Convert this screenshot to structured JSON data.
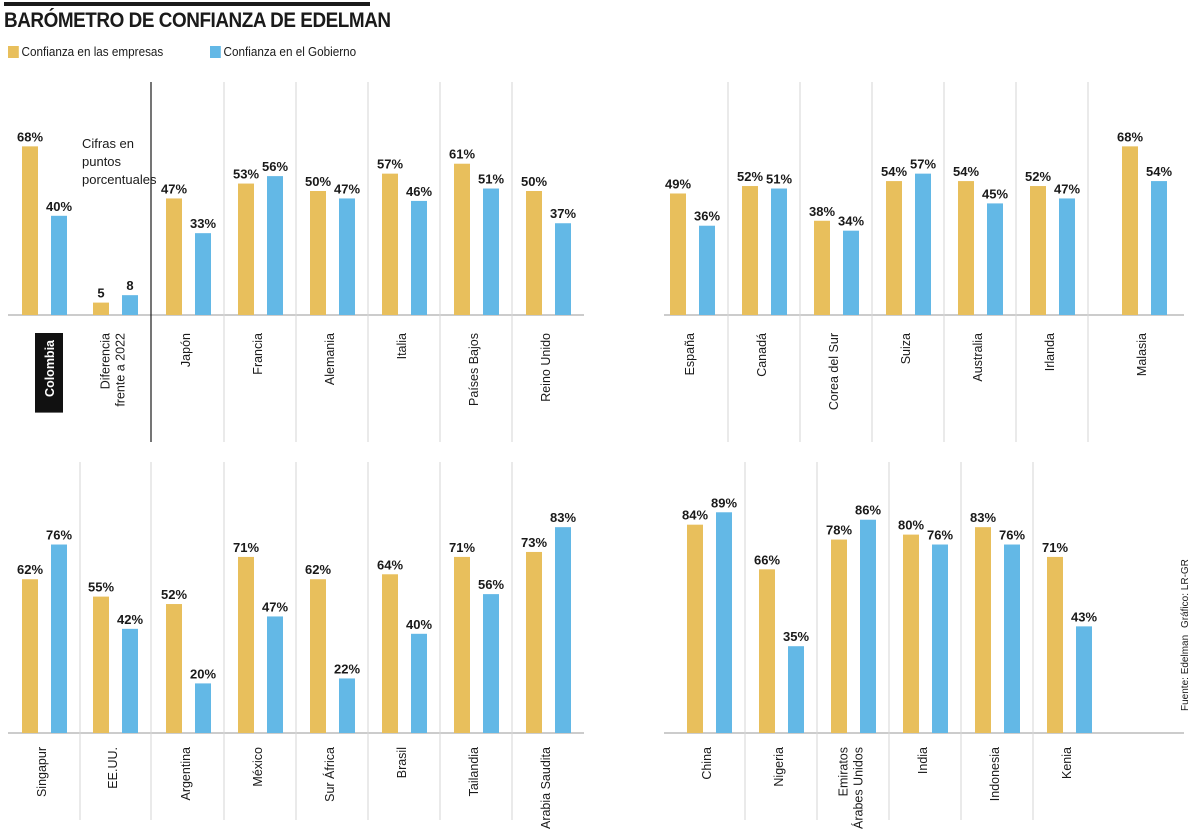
{
  "title": "BARÓMETRO DE CONFIANZA DE EDELMAN",
  "legend": {
    "business": "Confianza en las empresas",
    "government": "Confianza en el Gobierno"
  },
  "colors": {
    "business": "#E8BF5C",
    "government": "#63B8E6",
    "highlight_bg": "#111111"
  },
  "note_lines": [
    "Cifras en",
    "puntos",
    "porcentuales"
  ],
  "credits": {
    "source": "Fuente: Edelman",
    "graphic": "Gráfico: LR-GR"
  },
  "chart_data": {
    "type": "bar",
    "title": "BARÓMETRO DE CONFIANZA DE EDELMAN",
    "unit": "%",
    "series_names": [
      "Confianza en las empresas",
      "Confianza en el Gobierno"
    ],
    "rows": [
      {
        "groups": [
          {
            "name": [
              "Colombia"
            ],
            "business": 68,
            "government": 40,
            "highlight": true
          },
          {
            "name": [
              "Diferencia",
              "frente a 2022"
            ],
            "business": 5,
            "government": 8,
            "diff": true
          },
          {
            "name": [
              "Japón"
            ],
            "business": 47,
            "government": 33
          },
          {
            "name": [
              "Francia"
            ],
            "business": 53,
            "government": 56
          },
          {
            "name": [
              "Alemania"
            ],
            "business": 50,
            "government": 47
          },
          {
            "name": [
              "Italia"
            ],
            "business": 57,
            "government": 46
          },
          {
            "name": [
              "Países Bajos"
            ],
            "business": 61,
            "government": 51
          },
          {
            "name": [
              "Reino Unido"
            ],
            "business": 50,
            "government": 37
          },
          {
            "name": [
              "España"
            ],
            "business": 49,
            "government": 36
          },
          {
            "name": [
              "Canadá"
            ],
            "business": 52,
            "government": 51
          },
          {
            "name": [
              "Corea del Sur"
            ],
            "business": 38,
            "government": 34
          },
          {
            "name": [
              "Suiza"
            ],
            "business": 54,
            "government": 57
          },
          {
            "name": [
              "Australia"
            ],
            "business": 54,
            "government": 45
          },
          {
            "name": [
              "Irlanda"
            ],
            "business": 52,
            "government": 47
          },
          {
            "name": [
              "Malasia"
            ],
            "business": 68,
            "government": 54
          }
        ]
      },
      {
        "groups": [
          {
            "name": [
              "Singapur"
            ],
            "business": 62,
            "government": 76
          },
          {
            "name": [
              "EE.UU."
            ],
            "business": 55,
            "government": 42
          },
          {
            "name": [
              "Argentina"
            ],
            "business": 52,
            "government": 20
          },
          {
            "name": [
              "México"
            ],
            "business": 71,
            "government": 47
          },
          {
            "name": [
              "Sur África"
            ],
            "business": 62,
            "government": 22
          },
          {
            "name": [
              "Brasil"
            ],
            "business": 64,
            "government": 40
          },
          {
            "name": [
              "Tailandia"
            ],
            "business": 71,
            "government": 56
          },
          {
            "name": [
              "Arabia Saudita"
            ],
            "business": 73,
            "government": 83
          },
          {
            "name": [
              "China"
            ],
            "business": 84,
            "government": 89
          },
          {
            "name": [
              "Nigeria"
            ],
            "business": 66,
            "government": 35
          },
          {
            "name": [
              "Emiratos",
              "Árabes Unidos"
            ],
            "business": 78,
            "government": 86
          },
          {
            "name": [
              "India"
            ],
            "business": 80,
            "government": 76
          },
          {
            "name": [
              "Indonesia"
            ],
            "business": 83,
            "government": 76
          },
          {
            "name": [
              "Kenia"
            ],
            "business": 71,
            "government": 43
          }
        ]
      }
    ]
  }
}
